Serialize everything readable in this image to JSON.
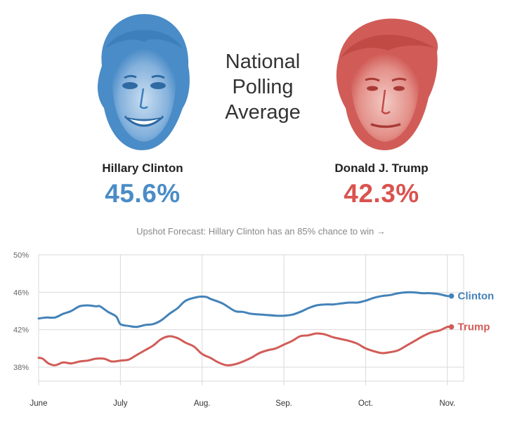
{
  "header": {
    "title_lines": [
      "National",
      "Polling",
      "Average"
    ],
    "forecast": "Upshot Forecast: Hillary Clinton has an 85% chance to win →"
  },
  "candidates": [
    {
      "name": "Hillary Clinton",
      "percent": "45.6%",
      "color": "#4a8cc7",
      "icon": "clinton-face-icon"
    },
    {
      "name": "Donald J. Trump",
      "percent": "42.3%",
      "color": "#d9534f",
      "icon": "trump-face-icon"
    }
  ],
  "chart_data": {
    "type": "line",
    "title": "",
    "xlabel": "",
    "ylabel": "",
    "x_ticks": [
      "June",
      "July",
      "Aug.",
      "Sep.",
      "Oct.",
      "Nov."
    ],
    "y_ticks": [
      "50%",
      "46%",
      "42%",
      "38%"
    ],
    "ylim": [
      36.5,
      50
    ],
    "xlim": [
      0,
      5.2
    ],
    "grid": true,
    "series": [
      {
        "name": "Clinton",
        "color": "#4482b8",
        "points": [
          [
            0,
            43.2
          ],
          [
            0.1,
            43.3
          ],
          [
            0.2,
            43.3
          ],
          [
            0.3,
            43.7
          ],
          [
            0.4,
            44.0
          ],
          [
            0.5,
            44.5
          ],
          [
            0.6,
            44.6
          ],
          [
            0.7,
            44.5
          ],
          [
            0.75,
            44.5
          ],
          [
            0.85,
            43.9
          ],
          [
            0.95,
            43.4
          ],
          [
            1.0,
            42.6
          ],
          [
            1.1,
            42.4
          ],
          [
            1.2,
            42.3
          ],
          [
            1.3,
            42.5
          ],
          [
            1.4,
            42.6
          ],
          [
            1.5,
            43.0
          ],
          [
            1.6,
            43.7
          ],
          [
            1.7,
            44.3
          ],
          [
            1.8,
            45.1
          ],
          [
            1.95,
            45.5
          ],
          [
            2.05,
            45.5
          ],
          [
            2.1,
            45.3
          ],
          [
            2.25,
            44.8
          ],
          [
            2.4,
            44.0
          ],
          [
            2.5,
            43.9
          ],
          [
            2.6,
            43.7
          ],
          [
            2.75,
            43.6
          ],
          [
            2.9,
            43.5
          ],
          [
            3.0,
            43.5
          ],
          [
            3.1,
            43.6
          ],
          [
            3.2,
            43.9
          ],
          [
            3.3,
            44.3
          ],
          [
            3.4,
            44.6
          ],
          [
            3.5,
            44.7
          ],
          [
            3.6,
            44.7
          ],
          [
            3.7,
            44.8
          ],
          [
            3.8,
            44.9
          ],
          [
            3.9,
            44.9
          ],
          [
            4.0,
            45.1
          ],
          [
            4.1,
            45.4
          ],
          [
            4.2,
            45.6
          ],
          [
            4.3,
            45.7
          ],
          [
            4.4,
            45.9
          ],
          [
            4.55,
            46.0
          ],
          [
            4.7,
            45.9
          ],
          [
            4.8,
            45.9
          ],
          [
            4.9,
            45.8
          ],
          [
            5.0,
            45.6
          ],
          [
            5.05,
            45.6
          ]
        ],
        "end_label": "Clinton",
        "end_value": 45.6
      },
      {
        "name": "Trump",
        "color": "#d15c57",
        "points": [
          [
            0,
            39.0
          ],
          [
            0.05,
            38.9
          ],
          [
            0.12,
            38.4
          ],
          [
            0.2,
            38.2
          ],
          [
            0.3,
            38.5
          ],
          [
            0.4,
            38.4
          ],
          [
            0.5,
            38.6
          ],
          [
            0.6,
            38.7
          ],
          [
            0.7,
            38.9
          ],
          [
            0.8,
            38.9
          ],
          [
            0.9,
            38.6
          ],
          [
            1.0,
            38.7
          ],
          [
            1.1,
            38.8
          ],
          [
            1.2,
            39.3
          ],
          [
            1.3,
            39.8
          ],
          [
            1.4,
            40.3
          ],
          [
            1.5,
            41.0
          ],
          [
            1.6,
            41.3
          ],
          [
            1.7,
            41.1
          ],
          [
            1.8,
            40.6
          ],
          [
            1.9,
            40.2
          ],
          [
            2.0,
            39.4
          ],
          [
            2.1,
            39.0
          ],
          [
            2.2,
            38.5
          ],
          [
            2.3,
            38.2
          ],
          [
            2.4,
            38.3
          ],
          [
            2.5,
            38.6
          ],
          [
            2.6,
            39.0
          ],
          [
            2.7,
            39.5
          ],
          [
            2.8,
            39.8
          ],
          [
            2.9,
            40.0
          ],
          [
            3.0,
            40.4
          ],
          [
            3.1,
            40.8
          ],
          [
            3.2,
            41.3
          ],
          [
            3.3,
            41.4
          ],
          [
            3.4,
            41.6
          ],
          [
            3.5,
            41.5
          ],
          [
            3.6,
            41.2
          ],
          [
            3.7,
            41.0
          ],
          [
            3.8,
            40.8
          ],
          [
            3.9,
            40.5
          ],
          [
            4.0,
            40.0
          ],
          [
            4.1,
            39.7
          ],
          [
            4.2,
            39.5
          ],
          [
            4.3,
            39.6
          ],
          [
            4.4,
            39.8
          ],
          [
            4.5,
            40.3
          ],
          [
            4.6,
            40.8
          ],
          [
            4.7,
            41.3
          ],
          [
            4.8,
            41.7
          ],
          [
            4.9,
            41.9
          ],
          [
            5.0,
            42.3
          ],
          [
            5.05,
            42.3
          ]
        ],
        "end_label": "Trump",
        "end_value": 42.3
      }
    ]
  }
}
